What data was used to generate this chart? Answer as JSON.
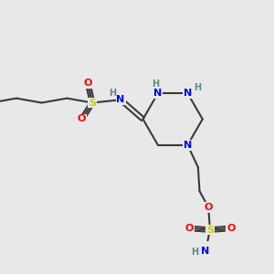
{
  "bg_color": "#e8e8e8",
  "bond_color": "#3a3a3a",
  "bond_width": 1.5,
  "atom_colors": {
    "N": "#0000ee",
    "O": "#ff0000",
    "S": "#cccc00",
    "H": "#5a8a8a",
    "C": "#3a3a3a"
  },
  "font_size": 8.0
}
